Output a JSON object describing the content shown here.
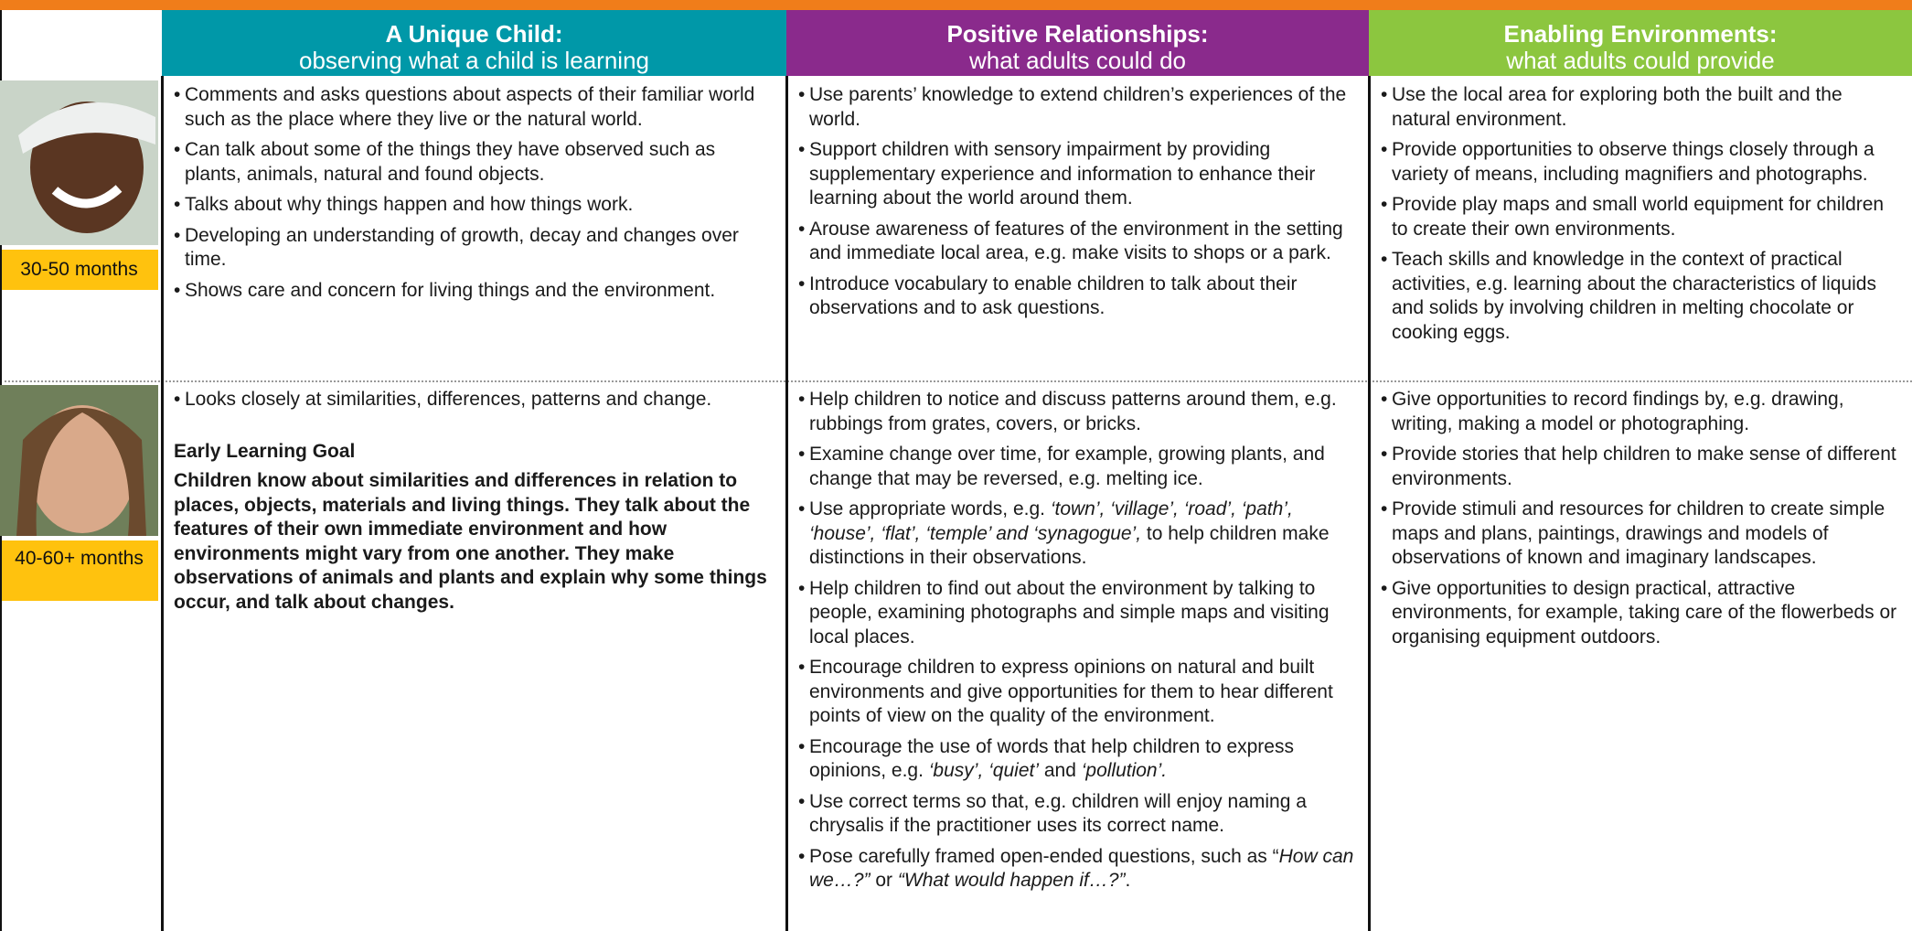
{
  "header": {
    "columns": [
      {
        "title": "A Unique Child:",
        "subtitle": "observing what a child is learning"
      },
      {
        "title": "Positive Relationships:",
        "subtitle": "what adults could do"
      },
      {
        "title": "Enabling Environments:",
        "subtitle": "what adults could provide"
      }
    ]
  },
  "rows": [
    {
      "age": "30-50 months",
      "cells": [
        {
          "items": [
            "Comments and asks questions about aspects of their familiar world such as the place where they live or the natural world.",
            "Can talk about some of the things they have observed such as plants, animals, natural and found objects.",
            "Talks about why things happen and how things work.",
            "Developing an understanding of growth, decay and changes over time.",
            "Shows care and concern for living things and the environment."
          ]
        },
        {
          "items": [
            "Use parents’ knowledge to extend children’s experiences of the world.",
            "Support children with sensory impairment by providing supplementary experience and information to enhance their learning about the world around them.",
            "Arouse awareness of features of the environment in the setting and immediate local area, e.g. make visits to shops or a park.",
            "Introduce vocabulary to enable children to talk about their observations and to ask questions."
          ]
        },
        {
          "items": [
            "Use the local area for exploring both the built and the natural environment.",
            "Provide opportunities to observe things closely through a variety of means, including magnifiers and photographs.",
            "Provide play maps and small world equipment for children to create their own environments.",
            "Teach skills and knowledge in the context of practical activities, e.g. learning about the characteristics of liquids and solids by involving children in melting chocolate or cooking eggs."
          ]
        }
      ]
    },
    {
      "age": "40-60+ months",
      "cells": [
        {
          "items": [
            "Looks closely at similarities, differences, patterns and change."
          ],
          "goal_heading": "Early Learning Goal",
          "goal": "Children know about similarities and differences in relation to places, objects, materials and living things. They talk about the features of their own immediate environment and how environments might vary from one another. They make observations of animals and plants and explain why some things occur, and talk about changes."
        },
        {
          "items": [
            "Help children to notice and discuss patterns around them, e.g. rubbings from grates, covers, or bricks.",
            "Examine change over time, for example, growing plants, and change that may be reversed, e.g. melting ice.",
            [
              "Use appropriate words, e.g. ",
              "‘town’, ‘village’, ‘road’, ‘path’, ‘house’, ‘flat’, ‘temple’ and ‘synagogue’,",
              " to help children make distinctions in their observations."
            ],
            "Help children to find out about the environment by talking to people, examining photographs and simple maps and visiting local places.",
            "Encourage children to express opinions on natural and built environments and give opportunities for them to hear different points of view on the quality of the environment.",
            [
              "Encourage the use of words that help children to express opinions, e.g. ",
              "‘busy’, ‘quiet’",
              " and ",
              "‘pollution’."
            ],
            "Use correct terms so that, e.g. children will enjoy naming a chrysalis if the practitioner uses its correct name.",
            [
              "Pose carefully framed open-ended questions, such as “",
              "How can we…?”",
              " or ",
              "“What would happen if…?”",
              "."
            ]
          ]
        },
        {
          "items": [
            "Give opportunities to record findings by, e.g. drawing, writing, making a model or photographing.",
            "Provide stories that help children to make sense of different environments.",
            "Provide stimuli and resources for children to create simple maps and plans, paintings, drawings and models of observations of known and imaginary landscapes.",
            "Give opportunities to design practical, attractive environments, for example, taking care of the flowerbeds or organising equipment outdoors."
          ]
        }
      ]
    }
  ]
}
